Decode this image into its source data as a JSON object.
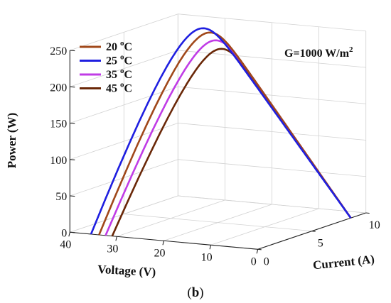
{
  "chart_data": {
    "type": "line",
    "title": "",
    "subtitle_label": "(b)",
    "subtitle_bold": "b",
    "annotation": {
      "text": "G=1000 W/m",
      "superscript": "2"
    },
    "zlabel": "Power (W)",
    "xlabel": "Voltage (V)",
    "ylabel": "Current (A)",
    "zlim": [
      0,
      250
    ],
    "xlim": [
      0,
      40
    ],
    "ylim": [
      0,
      10
    ],
    "zticks": [
      "0",
      "50",
      "100",
      "150",
      "200",
      "250"
    ],
    "xticks": [
      "0",
      "10",
      "20",
      "30",
      "40"
    ],
    "yticks": [
      "0",
      "5",
      "10"
    ],
    "grid": true,
    "legend_position": "top-left",
    "series": [
      {
        "name": "20 °C",
        "label_main": "20 ",
        "label_sup": "o",
        "label_unit": "C",
        "color": "#a0481a",
        "voc": 33.8,
        "isc": 8.6,
        "pmax": 240
      },
      {
        "name": "25 °C",
        "label_main": "25 ",
        "label_sup": "o",
        "label_unit": "C",
        "color": "#1f1fe0",
        "voc": 35.5,
        "isc": 8.6,
        "pmax": 245
      },
      {
        "name": "35 °C",
        "label_main": "35 ",
        "label_sup": "o",
        "label_unit": "C",
        "color": "#c03ce6",
        "voc": 32.4,
        "isc": 8.6,
        "pmax": 230
      },
      {
        "name": "45 °C",
        "label_main": "45 ",
        "label_sup": "o",
        "label_unit": "C",
        "color": "#6a2808",
        "voc": 31.0,
        "isc": 8.6,
        "pmax": 219
      }
    ]
  }
}
